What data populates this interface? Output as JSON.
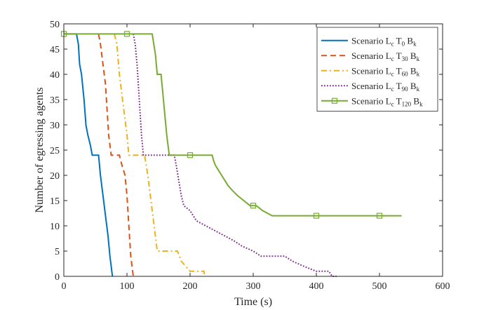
{
  "chart_data": {
    "type": "line",
    "title": "",
    "xlabel": "Time (s)",
    "ylabel": "Number of egressing agents",
    "xlim": [
      0,
      600
    ],
    "ylim": [
      0,
      50
    ],
    "xticks": [
      0,
      100,
      200,
      300,
      400,
      500,
      600
    ],
    "yticks": [
      0,
      5,
      10,
      15,
      20,
      25,
      30,
      35,
      40,
      45,
      50
    ],
    "grid": false,
    "legend_position": "top-right",
    "series": [
      {
        "name": "Scenario L_c T_0 B_k",
        "legend": {
          "prefix": "Scenario L",
          "parts": [
            [
              "c",
              "T"
            ],
            [
              "0",
              "B"
            ],
            [
              "k",
              ""
            ]
          ]
        },
        "color": "#0072BD",
        "dash": "solid",
        "marker": "none",
        "points": [
          [
            0,
            48
          ],
          [
            20,
            48
          ],
          [
            23,
            46
          ],
          [
            25,
            42
          ],
          [
            28,
            40
          ],
          [
            32,
            35
          ],
          [
            35,
            30
          ],
          [
            38,
            28
          ],
          [
            42,
            26
          ],
          [
            45,
            24
          ],
          [
            55,
            24
          ],
          [
            58,
            20
          ],
          [
            62,
            16
          ],
          [
            66,
            12
          ],
          [
            70,
            8
          ],
          [
            73,
            4
          ],
          [
            76,
            1
          ],
          [
            77,
            0
          ]
        ]
      },
      {
        "name": "Scenario L_c T_30 B_k",
        "legend": {
          "prefix": "Scenario L",
          "parts": [
            [
              "c",
              "T"
            ],
            [
              "30",
              "B"
            ],
            [
              "k",
              ""
            ]
          ]
        },
        "color": "#D95319",
        "dash": "dashed",
        "marker": "none",
        "points": [
          [
            55,
            48
          ],
          [
            58,
            46
          ],
          [
            62,
            42
          ],
          [
            66,
            38
          ],
          [
            69,
            32
          ],
          [
            71,
            28
          ],
          [
            75,
            24
          ],
          [
            88,
            24
          ],
          [
            92,
            22
          ],
          [
            97,
            20
          ],
          [
            100,
            16
          ],
          [
            102,
            12
          ],
          [
            104,
            8
          ],
          [
            106,
            4
          ],
          [
            108,
            2
          ],
          [
            110,
            0
          ]
        ]
      },
      {
        "name": "Scenario L_c T_60 B_k",
        "legend": {
          "prefix": "Scenario L",
          "parts": [
            [
              "c",
              "T"
            ],
            [
              "60",
              "B"
            ],
            [
              "k",
              ""
            ]
          ]
        },
        "color": "#EDB120",
        "dash": "dashdot",
        "marker": "none",
        "points": [
          [
            80,
            48
          ],
          [
            84,
            46
          ],
          [
            88,
            40
          ],
          [
            92,
            36
          ],
          [
            96,
            32
          ],
          [
            100,
            28
          ],
          [
            103,
            24
          ],
          [
            128,
            24
          ],
          [
            133,
            20
          ],
          [
            137,
            16
          ],
          [
            141,
            12
          ],
          [
            145,
            8
          ],
          [
            148,
            5
          ],
          [
            180,
            5
          ],
          [
            186,
            3
          ],
          [
            193,
            2
          ],
          [
            200,
            1
          ],
          [
            222,
            1
          ],
          [
            223,
            0
          ]
        ]
      },
      {
        "name": "Scenario L_c T_90 B_k",
        "legend": {
          "prefix": "Scenario L",
          "parts": [
            [
              "c",
              "T"
            ],
            [
              "90",
              "B"
            ],
            [
              "k",
              ""
            ]
          ]
        },
        "color": "#7E2F8E",
        "dash": "dotted",
        "marker": "none",
        "points": [
          [
            110,
            48
          ],
          [
            113,
            46
          ],
          [
            116,
            42
          ],
          [
            119,
            36
          ],
          [
            121,
            32
          ],
          [
            123,
            28
          ],
          [
            126,
            24
          ],
          [
            160,
            24
          ],
          [
            175,
            24
          ],
          [
            178,
            22
          ],
          [
            182,
            19
          ],
          [
            186,
            16
          ],
          [
            190,
            14
          ],
          [
            200,
            13
          ],
          [
            205,
            12
          ],
          [
            210,
            11
          ],
          [
            225,
            10
          ],
          [
            240,
            9
          ],
          [
            255,
            8
          ],
          [
            270,
            7
          ],
          [
            282,
            6
          ],
          [
            300,
            5
          ],
          [
            312,
            4
          ],
          [
            350,
            4
          ],
          [
            362,
            3
          ],
          [
            380,
            2
          ],
          [
            400,
            1
          ],
          [
            420,
            1
          ],
          [
            425,
            0
          ],
          [
            432,
            0
          ]
        ]
      },
      {
        "name": "Scenario L_c T_120 B_k",
        "legend": {
          "prefix": "Scenario L",
          "parts": [
            [
              "c",
              "T"
            ],
            [
              "120",
              "B"
            ],
            [
              "k",
              ""
            ]
          ]
        },
        "color": "#77AC30",
        "dash": "solid",
        "marker": "square",
        "marker_x": [
          0,
          100,
          200,
          300,
          400,
          500
        ],
        "points": [
          [
            0,
            48
          ],
          [
            140,
            48
          ],
          [
            145,
            44
          ],
          [
            148,
            40
          ],
          [
            154,
            40
          ],
          [
            157,
            36
          ],
          [
            160,
            32
          ],
          [
            163,
            28
          ],
          [
            167,
            24
          ],
          [
            235,
            24
          ],
          [
            237,
            23
          ],
          [
            240,
            22
          ],
          [
            245,
            21
          ],
          [
            250,
            20
          ],
          [
            255,
            19
          ],
          [
            260,
            18
          ],
          [
            267,
            17
          ],
          [
            275,
            16
          ],
          [
            285,
            15
          ],
          [
            295,
            14
          ],
          [
            305,
            14
          ],
          [
            315,
            13
          ],
          [
            330,
            12
          ],
          [
            535,
            12
          ]
        ]
      }
    ]
  }
}
